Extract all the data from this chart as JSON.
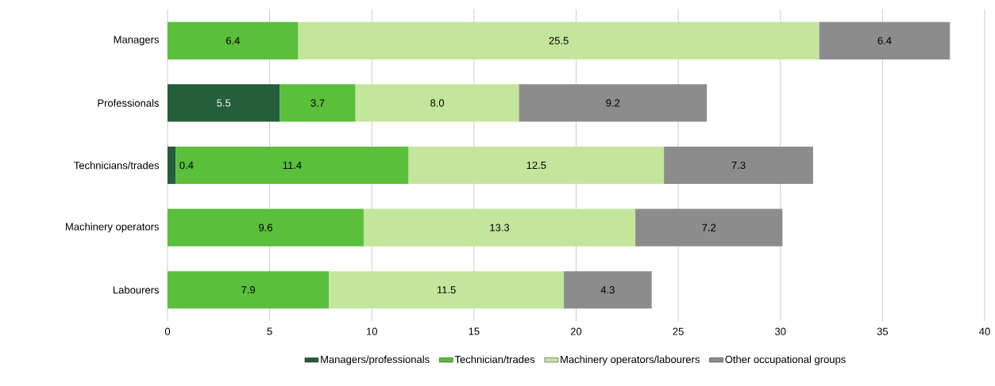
{
  "chart_data": {
    "type": "bar",
    "orientation": "horizontal",
    "stacked": true,
    "grid": "x",
    "legend": "bottom",
    "categories": [
      "Managers",
      "Professionals",
      "Technicians/trades",
      "Machinery operators",
      "Labourers"
    ],
    "series": [
      {
        "name": "Managers/professionals",
        "color": "#245e3a",
        "values": [
          null,
          5.5,
          0.4,
          null,
          null
        ],
        "value_labels": [
          null,
          "5.5",
          "0.4",
          null,
          null
        ]
      },
      {
        "name": "Technician/trades",
        "color": "#5abf3a",
        "values": [
          6.4,
          3.7,
          11.4,
          9.6,
          7.9
        ],
        "value_labels": [
          "6.4",
          "3.7",
          "11.4",
          "9.6",
          "7.9"
        ]
      },
      {
        "name": "Machinery operators/labourers",
        "color": "#c4e59c",
        "values": [
          25.5,
          8.0,
          12.5,
          13.3,
          11.5
        ],
        "value_labels": [
          "25.5",
          "8.0",
          "12.5",
          "13.3",
          "11.5"
        ]
      },
      {
        "name": "Other occupational groups",
        "color": "#8c8c8c",
        "values": [
          6.4,
          9.2,
          7.3,
          7.2,
          4.3
        ],
        "value_labels": [
          "6.4",
          "9.2",
          "7.3",
          "7.2",
          "4.3"
        ]
      }
    ],
    "xlim": [
      0,
      40
    ],
    "xticks": [
      0,
      5,
      10,
      15,
      20,
      25,
      30,
      35,
      40
    ]
  }
}
